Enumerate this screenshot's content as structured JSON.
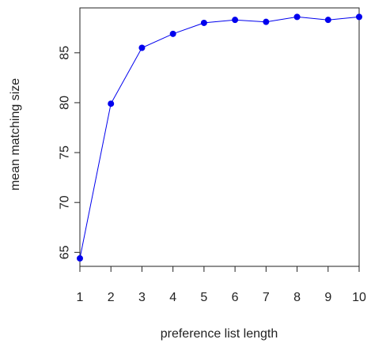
{
  "chart_data": {
    "type": "line",
    "title": "",
    "xlabel": "preference list length",
    "ylabel": "mean matching size",
    "x": [
      1,
      2,
      3,
      4,
      5,
      6,
      7,
      8,
      9,
      10
    ],
    "series": [
      {
        "values": [
          64.4,
          79.9,
          85.5,
          86.9,
          88.0,
          88.3,
          88.1,
          88.6,
          88.3,
          88.6
        ]
      }
    ],
    "xlim": [
      1,
      10
    ],
    "ylim": [
      63.6,
      89.5
    ],
    "xticks": [
      "1",
      "2",
      "3",
      "4",
      "5",
      "6",
      "7",
      "8",
      "9",
      "10"
    ],
    "yticks": [
      "65",
      "70",
      "75",
      "80",
      "85"
    ],
    "ytick_values": [
      65,
      70,
      75,
      80,
      85
    ],
    "grid": false,
    "legend": "none",
    "line_color": "#0000ee",
    "marker_color": "#0000ee",
    "marker": "filled-circle"
  }
}
